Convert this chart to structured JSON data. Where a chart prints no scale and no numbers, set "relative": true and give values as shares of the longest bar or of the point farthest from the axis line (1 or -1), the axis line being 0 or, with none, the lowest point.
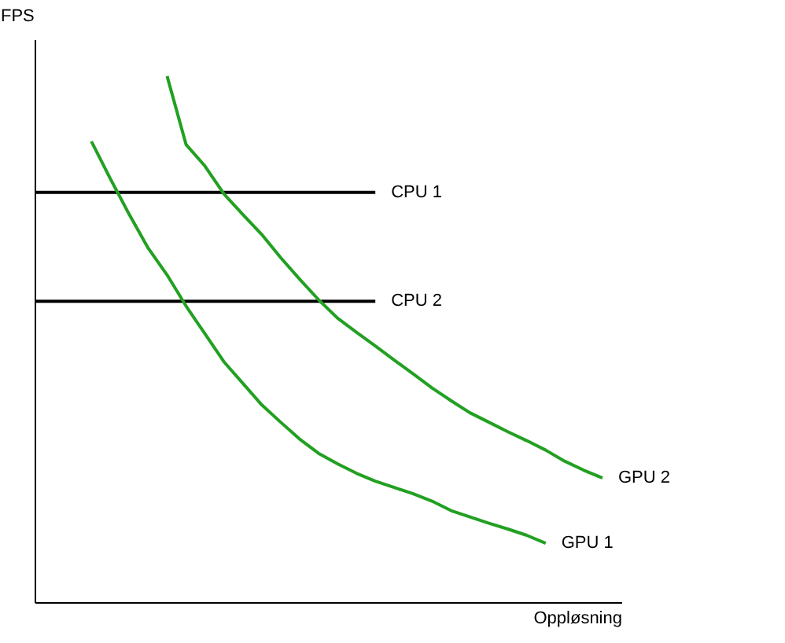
{
  "chart_data": {
    "type": "line",
    "relative": true,
    "xlabel": "Oppløsning",
    "ylabel": "FPS",
    "categories": [
      null,
      null,
      null,
      null,
      null,
      null,
      null,
      null,
      null,
      null,
      null,
      null,
      null,
      null,
      null,
      null,
      null,
      null,
      null,
      null,
      null,
      null,
      null,
      null,
      null,
      null,
      null,
      null,
      null,
      null,
      null,
      null
    ],
    "line_style": "solid",
    "marker": "none",
    "grid": false,
    "legend": false,
    "series": [
      {
        "name": "CPU 1",
        "color": "#000000",
        "values": [
          0.779,
          0.779,
          0.779,
          0.779,
          0.779,
          0.779,
          0.779,
          0.779,
          0.779,
          0.779,
          0.779,
          0.779,
          0.779,
          0.779,
          0.779,
          0.779,
          0.779,
          0.779,
          0.779,
          null,
          null,
          null,
          null,
          null,
          null,
          null,
          null,
          null,
          null,
          null,
          null,
          null
        ]
      },
      {
        "name": "CPU 2",
        "color": "#000000",
        "values": [
          0.572,
          0.572,
          0.572,
          0.572,
          0.572,
          0.572,
          0.572,
          0.572,
          0.572,
          0.572,
          0.572,
          0.572,
          0.572,
          0.572,
          0.572,
          0.572,
          0.572,
          0.572,
          0.572,
          null,
          null,
          null,
          null,
          null,
          null,
          null,
          null,
          null,
          null,
          null,
          null,
          null
        ]
      },
      {
        "name": "GPU 1",
        "color": "#22a022",
        "values": [
          null,
          null,
          null,
          0.876,
          0.805,
          0.737,
          0.673,
          0.622,
          0.563,
          0.51,
          0.457,
          0.416,
          0.375,
          0.342,
          0.31,
          0.283,
          0.263,
          0.245,
          0.23,
          0.218,
          0.206,
          0.192,
          0.174,
          0.162,
          0.15,
          0.139,
          0.127,
          0.112,
          null,
          null,
          null,
          null
        ]
      },
      {
        "name": "GPU 2",
        "color": "#22a022",
        "values": [
          null,
          null,
          null,
          null,
          null,
          null,
          null,
          1,
          0.87,
          0.829,
          0.776,
          0.737,
          0.699,
          0.655,
          0.614,
          0.575,
          0.54,
          0.513,
          0.487,
          0.46,
          0.434,
          0.407,
          0.383,
          0.36,
          0.342,
          0.324,
          0.307,
          0.289,
          0.268,
          0.251,
          0.236,
          null
        ]
      }
    ]
  }
}
